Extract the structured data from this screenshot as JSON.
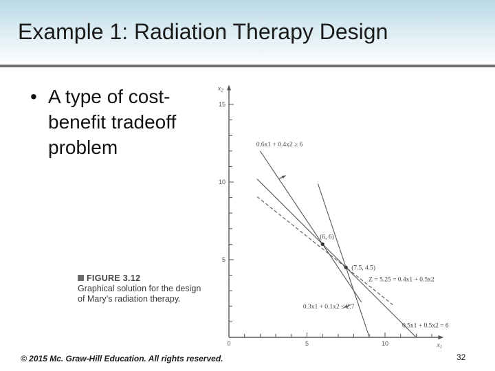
{
  "slide": {
    "title": "Example 1: Radiation Therapy Design",
    "bullet_symbol": "•",
    "bullet_text": "A type of cost-benefit tradeoff problem",
    "figure_label": "FIGURE 3.12",
    "figure_caption": "Graphical solution for the design of Mary’s radiation therapy.",
    "footer": "© 2015 Mc. Graw-Hill Education. All rights reserved.",
    "page_number": "32"
  },
  "graph": {
    "x_axis_label": "x1",
    "y_axis_label": "x2",
    "x_tick_labels": [
      "0",
      "5",
      "10"
    ],
    "y_tick_labels": [
      "5",
      "10",
      "15"
    ],
    "constraint_top_label": "0.6x1 + 0.4x2 ≥ 6",
    "point_a_label": "(6, 6)",
    "point_b_label": "(7.5, 4.5)",
    "objective_label": "Z = 5.25 = 0.4x1 + 0.5x2",
    "constraint_low_label": "0.3x1 + 0.1x2 ≤ 2.7",
    "constraint_right_label": "0.5x1 + 0.5x2 = 6"
  },
  "chart_data": {
    "type": "line",
    "xlabel": "x1",
    "ylabel": "x2",
    "xlim": [
      0,
      13.5
    ],
    "ylim": [
      0,
      16
    ],
    "x_ticks": [
      5,
      10
    ],
    "y_ticks": [
      5,
      10,
      15
    ],
    "series": [
      {
        "name": "0.6x1 + 0.4x2 ≥ 6",
        "style": "solid",
        "x": [
          2,
          8.5
        ],
        "y": [
          12,
          2.25
        ]
      },
      {
        "name": "0.3x1 + 0.1x2 ≤ 2.7",
        "style": "solid",
        "x": [
          5.7,
          9
        ],
        "y": [
          9.9,
          0
        ]
      },
      {
        "name": "0.5x1 + 0.5x2 = 6",
        "style": "solid",
        "x": [
          1.8,
          12
        ],
        "y": [
          10.2,
          0
        ]
      },
      {
        "name": "Z = 5.25 = 0.4x1 + 0.5x2",
        "style": "dashed",
        "x": [
          1.8,
          10.5
        ],
        "y": [
          9.06,
          2.1
        ]
      }
    ],
    "points": [
      {
        "label": "(6, 6)",
        "x": 6,
        "y": 6
      },
      {
        "label": "(7.5, 4.5)",
        "x": 7.5,
        "y": 4.5
      }
    ]
  }
}
